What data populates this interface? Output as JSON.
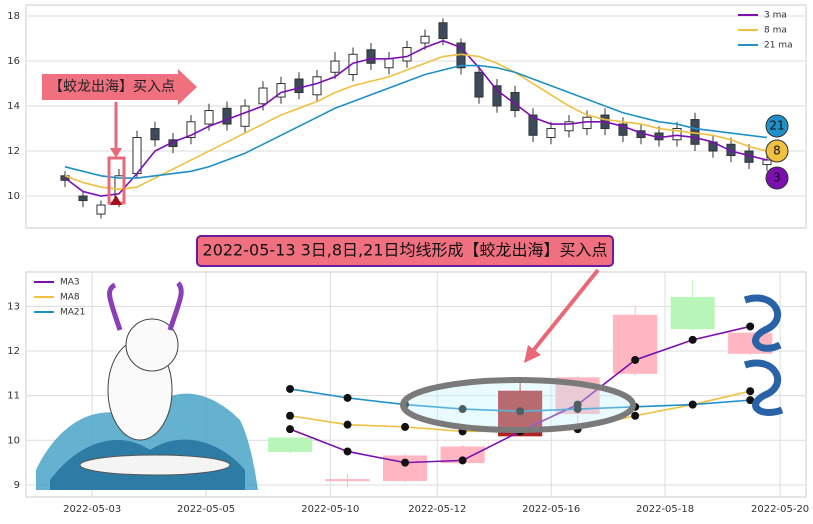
{
  "chart_data": [
    {
      "type": "candlestick",
      "annotation": "【蛟龙出海】买入点",
      "end_labels": [
        "21",
        "8",
        "3"
      ],
      "categories": [
        null,
        null,
        null,
        null,
        null,
        null,
        null,
        null,
        null,
        null,
        null,
        null,
        null,
        null,
        null,
        null,
        null,
        null,
        null,
        null,
        null,
        null,
        null,
        null,
        null,
        null,
        null,
        null,
        null,
        null,
        null,
        null,
        null,
        null,
        null,
        null,
        null,
        null,
        null,
        null
      ],
      "open": [
        10.9,
        10.0,
        9.2,
        9.7,
        11.0,
        13.0,
        12.5,
        12.6,
        13.2,
        13.9,
        13.1,
        14.1,
        14.4,
        15.2,
        14.5,
        15.5,
        15.4,
        16.5,
        15.7,
        16.0,
        16.8,
        17.7,
        16.8,
        15.5,
        14.9,
        14.6,
        13.6,
        12.6,
        12.9,
        13.0,
        13.6,
        13.2,
        12.9,
        12.8,
        12.5,
        13.4,
        12.4,
        12.3,
        12.0,
        11.4
      ],
      "high": [
        11.1,
        10.2,
        9.8,
        11.2,
        12.9,
        13.3,
        12.8,
        13.6,
        14.1,
        14.2,
        14.3,
        15.1,
        15.3,
        15.5,
        15.6,
        16.4,
        16.6,
        16.8,
        16.4,
        16.9,
        17.4,
        17.9,
        17.0,
        15.8,
        15.2,
        14.9,
        13.9,
        13.3,
        13.6,
        13.8,
        13.9,
        13.5,
        13.2,
        13.1,
        13.3,
        13.7,
        12.7,
        12.6,
        12.3,
        11.9
      ],
      "low": [
        10.4,
        9.5,
        9.0,
        9.5,
        10.8,
        12.2,
        11.9,
        12.3,
        12.9,
        12.9,
        12.8,
        13.8,
        14.1,
        14.3,
        14.2,
        15.2,
        15.1,
        15.6,
        15.4,
        15.7,
        16.5,
        16.7,
        15.4,
        14.1,
        13.7,
        13.5,
        12.4,
        12.3,
        12.6,
        12.7,
        12.7,
        12.4,
        12.3,
        12.2,
        12.2,
        12.0,
        11.7,
        11.5,
        11.2,
        11.1
      ],
      "close": [
        10.7,
        9.8,
        9.6,
        10.9,
        12.6,
        12.5,
        12.2,
        13.3,
        13.8,
        13.2,
        14.0,
        14.8,
        15.0,
        14.6,
        15.3,
        16.0,
        16.3,
        15.9,
        16.1,
        16.6,
        17.1,
        17.0,
        15.7,
        14.4,
        14.0,
        13.8,
        12.7,
        13.0,
        13.3,
        13.5,
        13.0,
        12.7,
        12.6,
        12.5,
        13.0,
        12.3,
        12.0,
        11.8,
        11.5,
        11.6
      ],
      "up_color": "#ffffff",
      "down_color": "#3d4a5c",
      "series": [
        {
          "name": "3 ma",
          "color": "#7b0fb0",
          "values": [
            10.8,
            10.2,
            10.0,
            10.1,
            11.0,
            12.0,
            12.4,
            12.7,
            13.1,
            13.4,
            13.7,
            14.0,
            14.6,
            14.8,
            15.0,
            15.3,
            15.9,
            16.1,
            16.1,
            16.2,
            16.6,
            16.9,
            16.6,
            15.7,
            14.7,
            14.1,
            13.5,
            13.2,
            13.2,
            13.3,
            13.3,
            13.1,
            12.8,
            12.6,
            12.7,
            12.6,
            12.4,
            12.0,
            11.8,
            11.6
          ]
        },
        {
          "name": "8 ma",
          "color": "#f0c040",
          "values": [
            10.9,
            10.6,
            10.4,
            10.3,
            10.4,
            10.8,
            11.2,
            11.6,
            12.0,
            12.4,
            12.8,
            13.2,
            13.6,
            13.9,
            14.2,
            14.6,
            14.9,
            15.1,
            15.3,
            15.6,
            15.9,
            16.2,
            16.3,
            16.2,
            15.9,
            15.5,
            15.0,
            14.5,
            14.0,
            13.6,
            13.4,
            13.3,
            13.2,
            13.0,
            12.9,
            12.8,
            12.7,
            12.5,
            12.2,
            12.0
          ]
        },
        {
          "name": "21 ma",
          "color": "#2090c8",
          "values": [
            11.3,
            11.1,
            10.9,
            10.8,
            10.8,
            10.9,
            11.0,
            11.1,
            11.3,
            11.6,
            11.9,
            12.3,
            12.7,
            13.1,
            13.5,
            13.9,
            14.2,
            14.5,
            14.8,
            15.1,
            15.4,
            15.6,
            15.8,
            15.8,
            15.7,
            15.5,
            15.2,
            14.9,
            14.6,
            14.3,
            14.0,
            13.7,
            13.5,
            13.3,
            13.2,
            13.0,
            12.9,
            12.8,
            12.7,
            12.6
          ]
        }
      ],
      "ylim": [
        8.58,
        18.49
      ],
      "yticks": [
        10,
        12,
        14,
        16,
        18
      ],
      "grid": true,
      "legend": "upper right"
    },
    {
      "type": "candlestick",
      "title": "2022-05-13 3日,8日,21日均线形成【蛟龙出海】买入点",
      "x": [
        0,
        1,
        2,
        3,
        4,
        5,
        6,
        7,
        8
      ],
      "open": [
        10.05,
        9.1,
        9.1,
        9.5,
        10.1,
        10.6,
        11.5,
        13.2,
        12.4
      ],
      "high": [
        10.05,
        9.25,
        9.7,
        9.9,
        11.4,
        11.45,
        13.0,
        13.6,
        12.4
      ],
      "low": [
        9.7,
        8.95,
        9.05,
        9.45,
        10.1,
        10.2,
        11.45,
        12.45,
        11.9
      ],
      "close": [
        9.75,
        9.12,
        9.65,
        9.85,
        11.1,
        11.4,
        12.8,
        12.5,
        11.95
      ],
      "colors": [
        "#b8f5b8",
        "#ffb6c1",
        "#ffb6c1",
        "#ffb6c1",
        "#b22222",
        "#ffb6c1",
        "#ffb6c1",
        "#b8f5b8",
        "#ffb6c1"
      ],
      "series": [
        {
          "name": "MA3",
          "color": "#7b0fb0",
          "values": [
            10.25,
            9.75,
            9.5,
            9.55,
            10.2,
            10.8,
            11.8,
            12.25,
            12.55
          ]
        },
        {
          "name": "MA8",
          "color": "#f0c040",
          "values": [
            10.55,
            10.35,
            10.3,
            10.2,
            10.2,
            10.25,
            10.55,
            10.8,
            11.1
          ]
        },
        {
          "name": "MA21",
          "color": "#2090c8",
          "values": [
            11.15,
            10.95,
            10.8,
            10.7,
            10.65,
            10.7,
            10.75,
            10.8,
            10.9
          ]
        }
      ],
      "xlim": [
        -4.59,
        8.97
      ],
      "xticks": [
        {
          "value": -3.44,
          "label": "2022-05-03"
        },
        {
          "value": -1.46,
          "label": "2022-05-05"
        },
        {
          "value": 0.7,
          "label": "2022-05-10"
        },
        {
          "value": 2.56,
          "label": "2022-05-12"
        },
        {
          "value": 4.54,
          "label": "2022-05-16"
        },
        {
          "value": 6.52,
          "label": "2022-05-18"
        },
        {
          "value": 8.52,
          "label": "2022-05-20"
        }
      ],
      "ylim": [
        8.73,
        13.77
      ],
      "yticks": [
        9,
        10,
        11,
        12,
        13
      ],
      "grid": true,
      "legend": "upper left"
    }
  ]
}
